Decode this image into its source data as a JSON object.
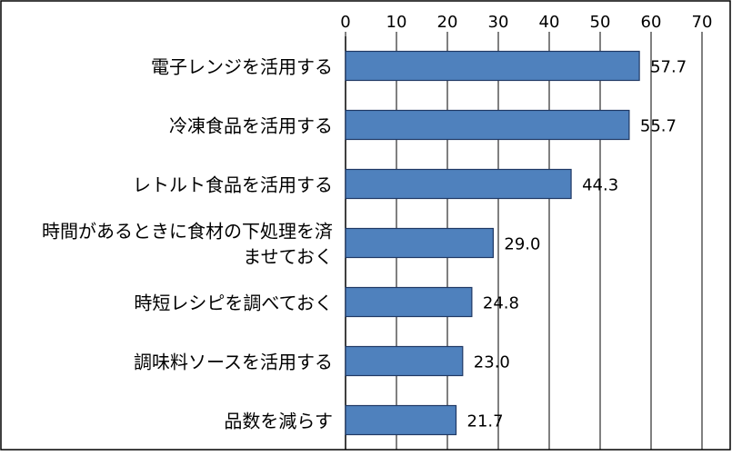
{
  "chart_data": {
    "type": "bar",
    "orientation": "horizontal",
    "categories": [
      [
        "電子レンジを活用する"
      ],
      [
        "冷凍食品を活用する"
      ],
      [
        "レトルト食品を活用する"
      ],
      [
        "時間があるときに食材の下処理を済",
        "ませておく"
      ],
      [
        "時短レシピを調べておく"
      ],
      [
        "調味料ソースを活用する"
      ],
      [
        "品数を減らす"
      ]
    ],
    "values": [
      57.7,
      55.7,
      44.3,
      29.0,
      24.8,
      23.0,
      21.7
    ],
    "data_labels": [
      "57.7",
      "55.7",
      "44.3",
      "29.0",
      "24.8",
      "23.0",
      "21.7"
    ],
    "xticks": [
      "0",
      "10",
      "20",
      "30",
      "40",
      "50",
      "60",
      "70"
    ],
    "xlim": [
      0,
      70
    ],
    "title": "",
    "xlabel": "",
    "ylabel": "",
    "x_axis_position": "top",
    "grid": "vertical",
    "legend": "none",
    "colors": {
      "bar_fill": "#4F81BD",
      "bar_stroke": "#1F3864",
      "grid": "#000000",
      "frame": "#000000"
    }
  }
}
